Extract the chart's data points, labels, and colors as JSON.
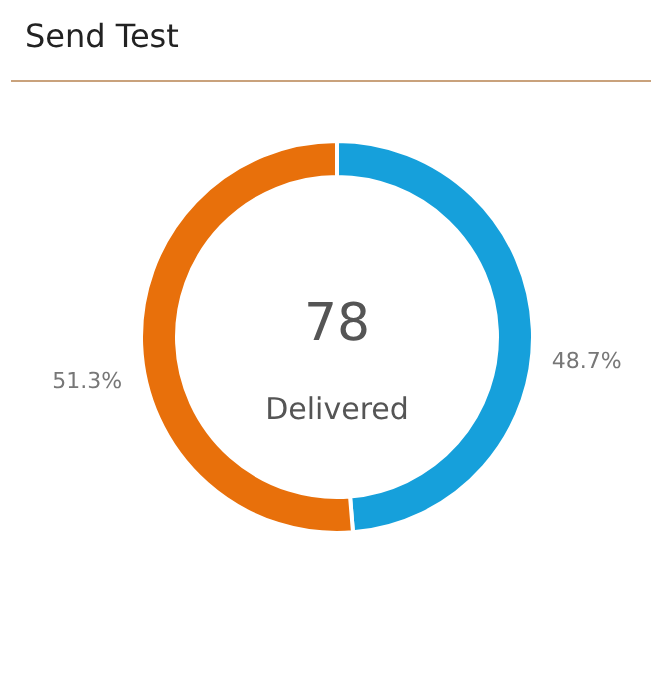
{
  "chart_data": {
    "type": "donut",
    "title": "Send Test",
    "categories": [
      null,
      null
    ],
    "values": [
      48.7,
      51.3
    ],
    "colors": [
      "#16a0db",
      "#e8700b"
    ],
    "value_labels": [
      "48.7%",
      "51.3%"
    ],
    "annotations": [
      "78",
      "Delivered"
    ]
  }
}
